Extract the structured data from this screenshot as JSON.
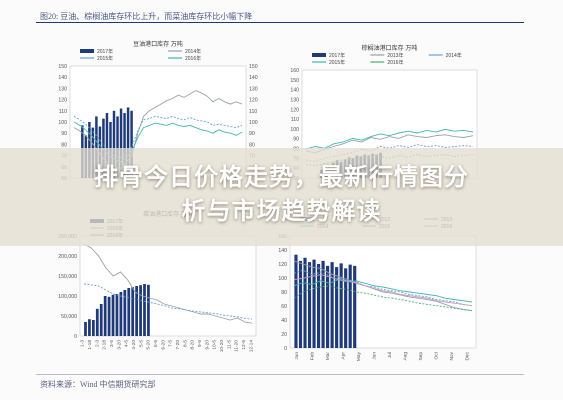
{
  "document": {
    "figure_title": "图20: 豆油、棕榈油库存环比上升，而菜油库存环比小幅下降",
    "source": "资料来源：Wind 中信期货研究部"
  },
  "headline": {
    "line1": "排骨今日价格走势，最新行情图分",
    "line2": "析与市场趋势解读"
  },
  "colors": {
    "bar": "#1f3a78",
    "line_grey": "#9aa0a8",
    "line_blue": "#6aa0d8",
    "line_teal": "#3fb8b0",
    "line_green": "#4caf72"
  },
  "chart_data": [
    {
      "type": "line",
      "title": "豆油港口库存 万吨",
      "legend": [
        "2017年",
        "2014年",
        "2015年",
        "2016年"
      ],
      "legend_position": "top",
      "y_left_ticks": [
        "150",
        "140",
        "130",
        "120",
        "110",
        "100",
        "90",
        "80",
        "70",
        "60",
        "50"
      ],
      "y_right_ticks": [
        "150",
        "140",
        "130",
        "120",
        "110",
        "100",
        "90",
        "80",
        "70",
        "60",
        "50"
      ],
      "ylim": [
        50,
        150
      ],
      "grid": false,
      "series": [
        {
          "name": "2017年",
          "style": "bar",
          "values": [
            97,
            88,
            100,
            95,
            105,
            96,
            103,
            108,
            100,
            110,
            105,
            112,
            108,
            113,
            110
          ]
        },
        {
          "name": "2014年",
          "values": [
            95,
            92,
            88,
            82,
            75,
            68,
            62,
            60,
            58,
            64,
            70,
            90,
            105,
            110,
            113,
            116,
            119,
            121,
            124,
            122,
            125,
            128,
            126,
            123,
            118,
            121,
            118,
            116,
            118,
            116
          ]
        },
        {
          "name": "2015年",
          "values": [
            105,
            102,
            98,
            93,
            87,
            80,
            74,
            70,
            68,
            72,
            78,
            92,
            102,
            103,
            105,
            104,
            103,
            105,
            103,
            102,
            104,
            102,
            101,
            100,
            97,
            98,
            97,
            96,
            95,
            97
          ]
        },
        {
          "name": "2016年",
          "values": [
            100,
            97,
            93,
            88,
            82,
            76,
            70,
            67,
            64,
            68,
            74,
            86,
            95,
            97,
            99,
            98,
            97,
            99,
            97,
            96,
            97,
            95,
            93,
            92,
            90,
            93,
            91,
            90,
            88,
            91
          ]
        }
      ]
    },
    {
      "type": "line",
      "title": "棕榈油港口库存 万吨",
      "legend": [
        "2017年",
        "2013年",
        "2014年",
        "2015年",
        "2016年"
      ],
      "legend_position": "top",
      "y_left_ticks": [
        "160",
        "150",
        "140",
        "130",
        "120",
        "110",
        "100",
        "90",
        "80",
        "70",
        "60",
        "50"
      ],
      "ylim": [
        40,
        160
      ],
      "grid": false,
      "series": [
        {
          "name": "2017年",
          "style": "bar",
          "values": [
            49,
            52,
            54,
            57,
            60,
            58,
            61,
            63,
            62,
            65,
            64,
            66,
            65,
            67,
            66,
            68
          ]
        },
        {
          "name": "2013年",
          "values": [
            70,
            68,
            72,
            75,
            78,
            82,
            80,
            85,
            83,
            86,
            84,
            88,
            86,
            85,
            87,
            88,
            86,
            85,
            87
          ]
        },
        {
          "name": "2014年",
          "values": [
            60,
            58,
            62,
            64,
            66,
            68,
            72,
            70,
            75,
            73,
            76,
            74,
            77,
            75,
            76,
            74,
            75,
            76,
            75
          ]
        },
        {
          "name": "2015年",
          "values": [
            72,
            75,
            73,
            78,
            80,
            84,
            82,
            86,
            89,
            87,
            90,
            92,
            90,
            93,
            91,
            94,
            92,
            93,
            91
          ]
        },
        {
          "name": "2016年",
          "values": [
            55,
            54,
            56,
            58,
            60,
            62,
            61,
            63,
            64,
            62,
            65,
            63,
            66,
            64,
            65,
            66,
            64,
            65,
            66
          ]
        }
      ]
    },
    {
      "type": "line",
      "title": "菜油港口库存 万吨",
      "legend": [
        "2017年",
        "2015年",
        "2016年"
      ],
      "legend_position": "top",
      "y_left_ticks": [
        "250,000",
        "200,000",
        "150,000",
        "100,000",
        "50,000",
        "0"
      ],
      "ylim": [
        0,
        250000
      ],
      "x_ticks": [
        "1-3",
        "1-18",
        "2-3",
        "2-18",
        "3-5",
        "3-20",
        "4-5",
        "4-20",
        "5-5",
        "5-20",
        "6-5",
        "6-20",
        "7-5",
        "7-20",
        "8-5",
        "8-20",
        "9-5",
        "9-20",
        "10-5",
        "10-20",
        "11-5",
        "11-20",
        "12-5",
        "12-14"
      ],
      "grid": false,
      "series": [
        {
          "name": "2017年",
          "style": "bar",
          "values": [
            35000,
            42000,
            40000,
            68000,
            80000,
            100000,
            98000,
            103000,
            105000,
            110000,
            115000,
            120000,
            122000,
            125000,
            127000,
            130000,
            128000
          ]
        },
        {
          "name": "2015年",
          "values": [
            230000,
            220000,
            200000,
            170000,
            150000,
            160000,
            140000,
            110000,
            100000,
            95000,
            90000,
            80000,
            75000,
            70000,
            65000,
            60000,
            55000,
            55000,
            50000,
            45000,
            40000,
            45000,
            35000,
            32000
          ]
        },
        {
          "name": "2016年",
          "values": [
            130000,
            128000,
            125000,
            115000,
            105000,
            100000,
            96000,
            92000,
            88000,
            84000,
            80000,
            76000,
            70000,
            68000,
            65000,
            62000,
            60000,
            58000,
            56000,
            52000,
            50000,
            48000,
            44000,
            42000
          ]
        }
      ]
    },
    {
      "type": "line",
      "title": "",
      "legend": [
        "2017",
        "2012",
        "2013",
        "2014",
        "2015",
        "2016"
      ],
      "legend_position": "top",
      "y_left_ticks": [
        "160",
        "140",
        "120",
        "100",
        "80",
        "60",
        "40",
        "20",
        "0"
      ],
      "ylim": [
        0,
        180
      ],
      "x_ticks": [
        "Jan",
        "Feb",
        "Mar",
        "Apr",
        "May",
        "Jun",
        "Jul",
        "Aug",
        "Sep",
        "Oct",
        "Nov",
        "Dec"
      ],
      "grid": false,
      "series": [
        {
          "name": "2017",
          "style": "bar",
          "values": [
            150,
            140,
            145,
            138,
            142,
            135,
            140,
            132,
            138,
            130,
            136,
            128,
            134,
            132
          ]
        },
        {
          "name": "2012",
          "values": [
            140,
            135,
            130,
            128,
            120,
            115,
            110,
            105,
            100,
            95,
            90,
            88,
            85,
            82,
            80,
            78,
            75,
            70,
            65,
            62,
            60
          ]
        },
        {
          "name": "2013",
          "values": [
            120,
            125,
            118,
            122,
            116,
            112,
            110,
            106,
            100,
            98,
            94,
            92,
            90,
            86,
            84,
            82,
            78,
            76,
            74,
            70,
            68
          ]
        },
        {
          "name": "2014",
          "values": [
            100,
            105,
            102,
            108,
            104,
            110,
            106,
            108,
            104,
            100,
            98,
            95,
            92,
            90,
            88,
            86,
            84,
            80,
            78,
            76,
            74
          ]
        },
        {
          "name": "2015",
          "values": [
            80,
            90,
            95,
            98,
            100,
            96,
            94,
            90,
            88,
            85,
            82,
            80,
            78,
            75,
            72,
            70,
            68,
            66,
            64,
            62,
            60
          ]
        },
        {
          "name": "2016",
          "values": [
            110,
            112,
            115,
            118,
            114,
            110,
            108,
            104,
            100,
            96,
            92,
            90,
            86,
            84,
            82,
            80,
            76,
            74,
            72,
            70,
            68
          ]
        }
      ]
    }
  ]
}
